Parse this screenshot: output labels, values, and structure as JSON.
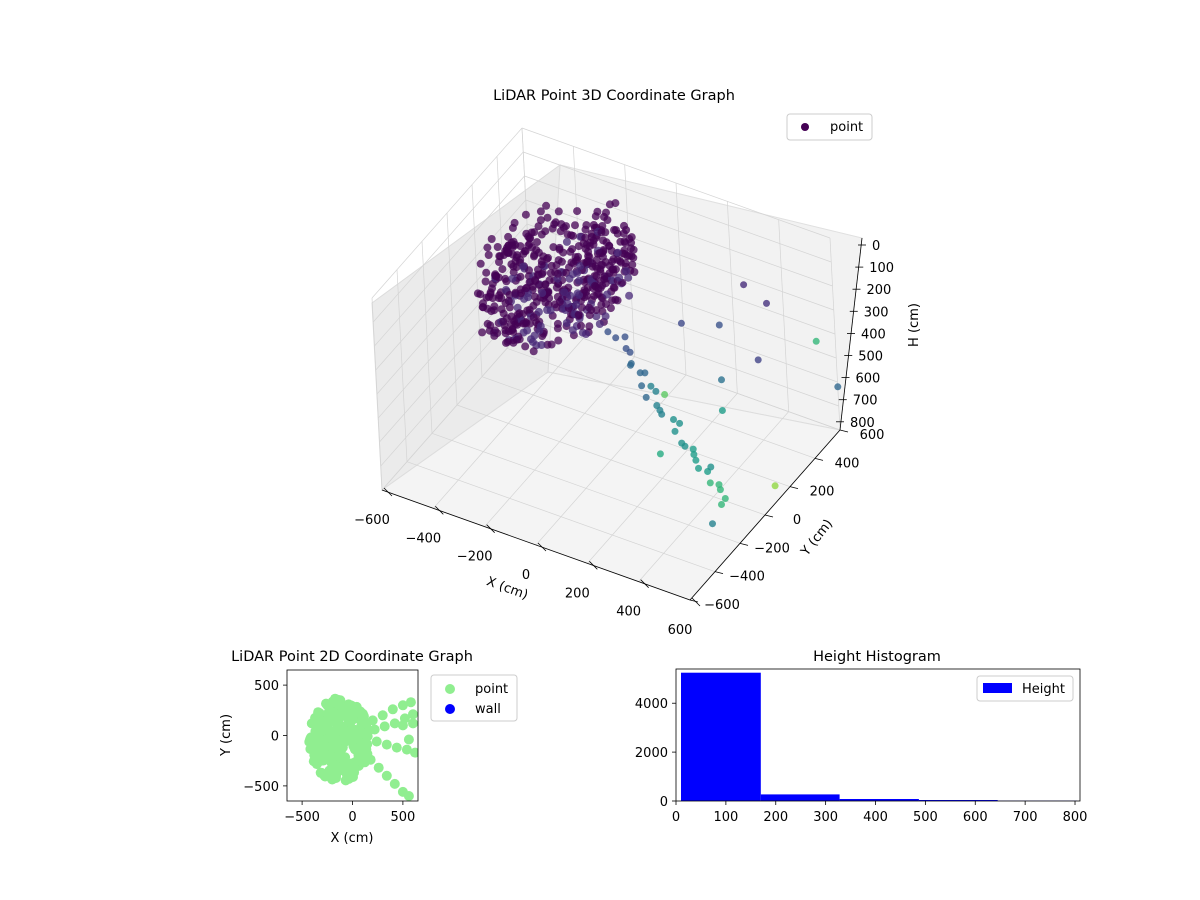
{
  "chart_data": [
    {
      "type": "scatter3d",
      "title": "LiDAR Point 3D Coordinate Graph",
      "xlabel": "X (cm)",
      "ylabel": "Y (cm)",
      "zlabel": "H (cm)",
      "xlim": [
        -600,
        600
      ],
      "ylim": [
        -600,
        600
      ],
      "zlim": [
        0,
        800
      ],
      "z_inverted": true,
      "grid": true,
      "colormap": "viridis",
      "xticks": [
        "−600",
        "−400",
        "−200",
        "0",
        "200",
        "400",
        "600"
      ],
      "yticks": [
        "−600",
        "−400",
        "−200",
        "0",
        "200",
        "400",
        "600"
      ],
      "zticks": [
        "0",
        "100",
        "200",
        "300",
        "400",
        "500",
        "600",
        "700",
        "800"
      ],
      "legend": {
        "placement": "top-right",
        "entries": [
          {
            "label": "point",
            "color": "#440154"
          }
        ]
      },
      "dense_cluster": {
        "x_center": -100,
        "y_center": 0,
        "h_range": [
          20,
          180
        ],
        "radius": 430
      },
      "sparse_points": [
        {
          "x": 100,
          "y": 100,
          "h": 560,
          "c": "#31688e"
        },
        {
          "x": 200,
          "y": 50,
          "h": 480,
          "c": "#5dc863"
        },
        {
          "x": 300,
          "y": 300,
          "h": 300,
          "c": "#3b528b"
        },
        {
          "x": 450,
          "y": 380,
          "h": 200,
          "c": "#46327e"
        },
        {
          "x": 500,
          "y": 200,
          "h": 310,
          "c": "#414487"
        },
        {
          "x": 550,
          "y": 550,
          "h": 420,
          "c": "#35b779"
        },
        {
          "x": 400,
          "y": 100,
          "h": 500,
          "c": "#1f9e89"
        },
        {
          "x": 500,
          "y": -200,
          "h": 520,
          "c": "#21918c"
        },
        {
          "x": 600,
          "y": -400,
          "h": 600,
          "c": "#26828e"
        },
        {
          "x": 300,
          "y": 500,
          "h": 250,
          "c": "#472d7b"
        },
        {
          "x": 250,
          "y": -100,
          "h": 620,
          "c": "#25ab82"
        },
        {
          "x": 620,
          "y": 50,
          "h": 700,
          "c": "#90d743"
        },
        {
          "x": 150,
          "y": 300,
          "h": 350,
          "c": "#3e4a89"
        },
        {
          "x": 350,
          "y": 200,
          "h": 450,
          "c": "#2c728e"
        },
        {
          "x": 600,
          "y": 600,
          "h": 620,
          "c": "#31688e"
        }
      ]
    },
    {
      "type": "scatter",
      "title": "LiDAR Point 2D Coordinate Graph",
      "xlabel": "X (cm)",
      "ylabel": "Y (cm)",
      "xlim": [
        -650,
        650
      ],
      "ylim": [
        -650,
        650
      ],
      "xticks": [
        -500,
        0,
        500
      ],
      "yticks": [
        -500,
        0,
        500
      ],
      "legend": {
        "placement": "outside-right",
        "entries": [
          {
            "label": "point",
            "color": "#90ee90"
          },
          {
            "label": "wall",
            "color": "#0000ff"
          }
        ]
      },
      "series": [
        {
          "name": "point",
          "color": "#90ee90",
          "blob": {
            "x_center": -130,
            "y_center": -40,
            "rx": 300,
            "ry": 420
          },
          "points": [
            {
              "x": 200,
              "y": 150
            },
            {
              "x": 300,
              "y": 200
            },
            {
              "x": 400,
              "y": 260
            },
            {
              "x": 500,
              "y": 300
            },
            {
              "x": 580,
              "y": 330
            },
            {
              "x": 220,
              "y": 60
            },
            {
              "x": 320,
              "y": 90
            },
            {
              "x": 420,
              "y": 120
            },
            {
              "x": 520,
              "y": 170
            },
            {
              "x": 600,
              "y": 210
            },
            {
              "x": 240,
              "y": -60
            },
            {
              "x": 340,
              "y": -90
            },
            {
              "x": 440,
              "y": -120
            },
            {
              "x": 540,
              "y": -140
            },
            {
              "x": 620,
              "y": -170
            },
            {
              "x": 180,
              "y": -240
            },
            {
              "x": 260,
              "y": -320
            },
            {
              "x": 340,
              "y": -400
            },
            {
              "x": 420,
              "y": -480
            },
            {
              "x": 500,
              "y": -560
            },
            {
              "x": 560,
              "y": -600
            },
            {
              "x": 600,
              "y": 120
            },
            {
              "x": 500,
              "y": 100
            },
            {
              "x": 560,
              "y": -40
            }
          ]
        },
        {
          "name": "wall",
          "color": "#0000ff",
          "points": []
        }
      ]
    },
    {
      "type": "histogram",
      "title": "Height Histogram",
      "xlim": [
        0,
        810
      ],
      "ylim": [
        0,
        5400
      ],
      "xticks": [
        0,
        100,
        200,
        300,
        400,
        500,
        600,
        700,
        800
      ],
      "yticks": [
        0,
        2000,
        4000
      ],
      "legend": {
        "placement": "top-right",
        "entries": [
          {
            "label": "Height",
            "color": "#0000ff"
          }
        ]
      },
      "series": [
        {
          "name": "Height",
          "color": "#0000ff",
          "bins": [
            {
              "from": 10,
              "to": 170,
              "count": 5250
            },
            {
              "from": 170,
              "to": 328,
              "count": 270
            },
            {
              "from": 328,
              "to": 487,
              "count": 80
            },
            {
              "from": 487,
              "to": 645,
              "count": 40
            },
            {
              "from": 645,
              "to": 804,
              "count": 12
            }
          ]
        }
      ]
    }
  ]
}
